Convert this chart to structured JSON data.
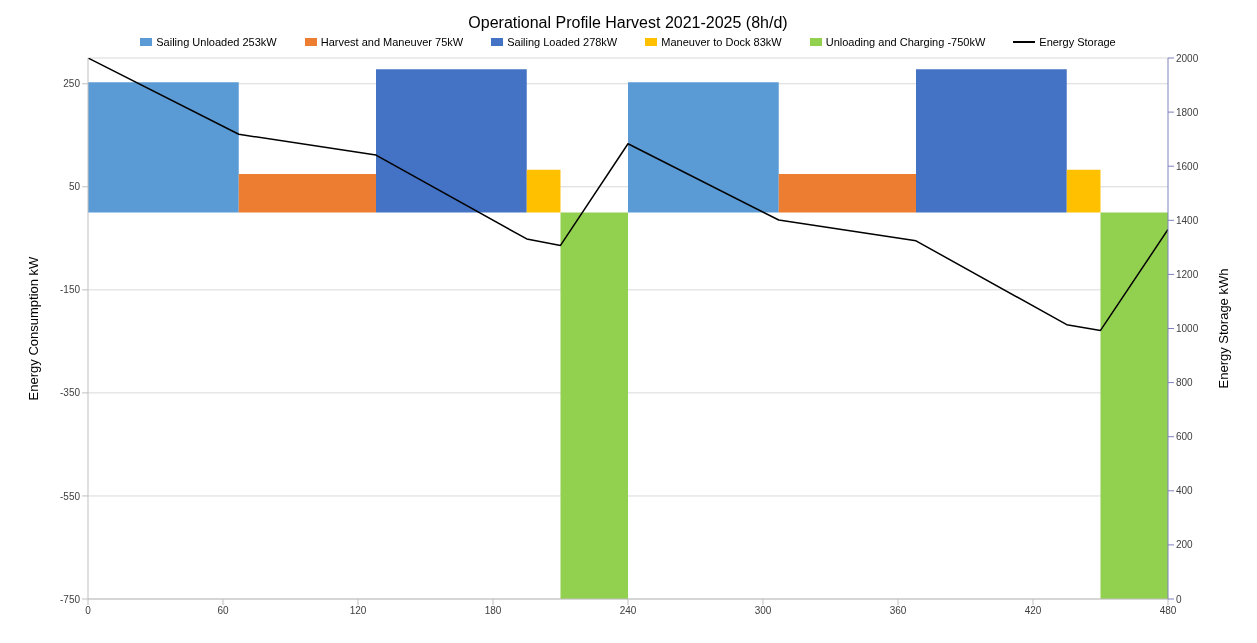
{
  "chart_data": {
    "type": "area",
    "title": "Operational Profile Harvest 2021-2025 (8h/d)",
    "ylabel": "Energy Consumption kW",
    "y2label": "Energy Storage kWh",
    "xlim": [
      0,
      480
    ],
    "xticks": [
      0,
      60,
      120,
      180,
      240,
      300,
      360,
      420,
      480
    ],
    "ylim": [
      -750,
      300
    ],
    "yticks": [
      -750,
      -550,
      -350,
      -150,
      50,
      250
    ],
    "y2lim": [
      0,
      2000
    ],
    "y2ticks": [
      0,
      200,
      400,
      600,
      800,
      1000,
      1200,
      1400,
      1600,
      1800,
      2000
    ],
    "grid": "y",
    "legend": "top",
    "series": [
      {
        "name": "Sailing Unloaded 253kW",
        "color": "#5b9bd5",
        "x": [
          0,
          67
        ],
        "values": [
          253,
          253
        ]
      },
      {
        "name": "Harvest and Maneuver 75kW",
        "color": "#ed7d31",
        "x": [
          67,
          128
        ],
        "values": [
          75,
          75
        ]
      },
      {
        "name": "Sailing Loaded 278kW",
        "color": "#4472c4",
        "x": [
          128,
          195
        ],
        "values": [
          278,
          278
        ]
      },
      {
        "name": "Maneuver to Dock 83kW",
        "color": "#ffc000",
        "x": [
          195,
          210
        ],
        "values": [
          83,
          83
        ]
      },
      {
        "name": "Unloading and Charging -750kW",
        "color": "#92d050",
        "x": [
          210,
          240
        ],
        "values": [
          -750,
          -750
        ]
      },
      {
        "color": "#5b9bd5",
        "x": [
          240,
          307
        ],
        "values": [
          253,
          253
        ]
      },
      {
        "color": "#ed7d31",
        "x": [
          307,
          368
        ],
        "values": [
          75,
          75
        ]
      },
      {
        "color": "#4472c4",
        "x": [
          368,
          435
        ],
        "values": [
          278,
          278
        ]
      },
      {
        "color": "#ffc000",
        "x": [
          435,
          450
        ],
        "values": [
          83,
          83
        ]
      },
      {
        "color": "#92d050",
        "x": [
          450,
          480
        ],
        "values": [
          -750,
          -750
        ]
      },
      {
        "name": "Energy Storage",
        "type": "line",
        "axis": "y2",
        "color": "#000000",
        "x": [
          0,
          67,
          128,
          195,
          210,
          240,
          307,
          368,
          435,
          450,
          480
        ],
        "values": [
          2000,
          1718,
          1641,
          1331,
          1307,
          1683,
          1401,
          1324,
          1014,
          993,
          1366
        ]
      }
    ]
  }
}
